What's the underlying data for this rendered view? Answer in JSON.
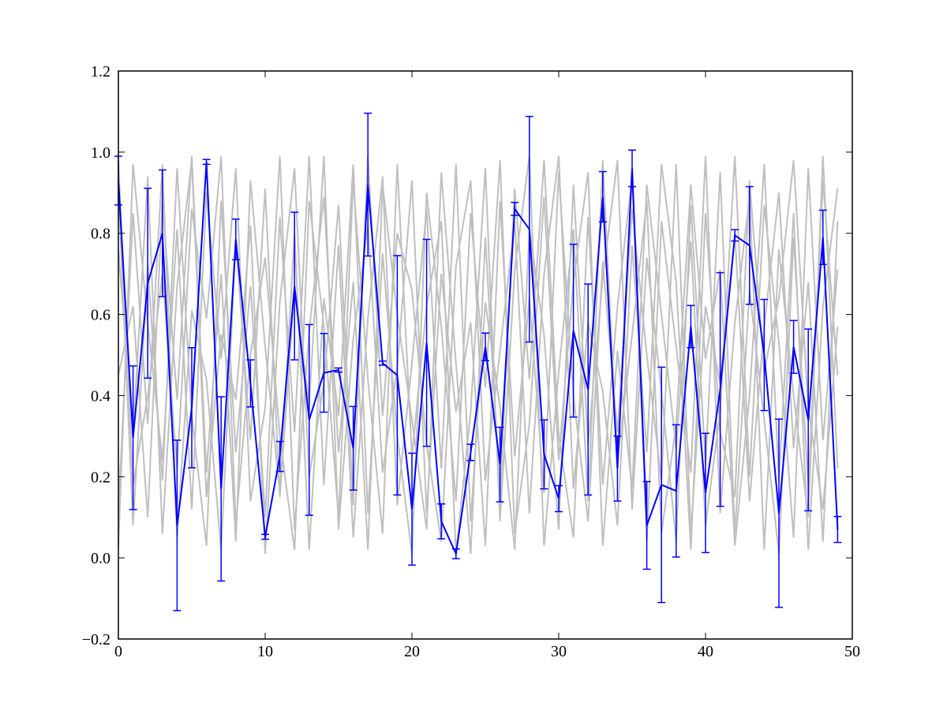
{
  "chart_data": {
    "type": "errorbar-line",
    "x": [
      0,
      1,
      2,
      3,
      4,
      5,
      6,
      7,
      8,
      9,
      10,
      11,
      12,
      13,
      14,
      15,
      16,
      17,
      18,
      19,
      20,
      21,
      22,
      23,
      24,
      25,
      26,
      27,
      28,
      29,
      30,
      31,
      32,
      33,
      34,
      35,
      36,
      37,
      38,
      39,
      40,
      41,
      42,
      43,
      44,
      45,
      46,
      47,
      48,
      49
    ],
    "xlim": [
      0,
      50
    ],
    "xticks": [
      0,
      10,
      20,
      30,
      40,
      50
    ],
    "ylim": [
      -0.2,
      1.2
    ],
    "yticks": [
      {
        "value": -0.2,
        "label": "−0.2"
      },
      {
        "value": 0,
        "label": "0.0"
      },
      0.2,
      0.4,
      0.6,
      0.8,
      {
        "value": 1,
        "label": "1.0"
      },
      1.2
    ],
    "grid": false,
    "background_series": [
      {
        "color": "#bfbfbf",
        "values": [
          0.12,
          0.85,
          0.33,
          0.97,
          0.05,
          0.61,
          0.44,
          0.02,
          0.78,
          0.29,
          0.91,
          0.15,
          0.66,
          0.38,
          0.99,
          0.07,
          0.54,
          0.82,
          0.21,
          0.47,
          0.93,
          0.11,
          0.7,
          0.36,
          0.58,
          0.03,
          0.88,
          0.25,
          0.64,
          0.16,
          0.95,
          0.4,
          0.09,
          0.73,
          0.31,
          0.86,
          0.5,
          0.19,
          0.97,
          0.06,
          0.62,
          0.43,
          0.8,
          0.14,
          0.57,
          0.9,
          0.27,
          0.68,
          0.04,
          0.83
        ]
      },
      {
        "color": "#bfbfbf",
        "values": [
          0.91,
          0.08,
          0.72,
          0.19,
          0.96,
          0.35,
          0.03,
          0.88,
          0.26,
          0.67,
          0.1,
          0.84,
          0.31,
          0.99,
          0.18,
          0.77,
          0.05,
          0.59,
          0.94,
          0.13,
          0.48,
          0.86,
          0.22,
          0.97,
          0.09,
          0.63,
          0.37,
          0.02,
          0.81,
          0.55,
          0.07,
          0.92,
          0.28,
          0.69,
          0.98,
          0.12,
          0.74,
          0.41,
          0.04,
          0.87,
          0.23,
          0.95,
          0.06,
          0.66,
          0.34,
          0.01,
          0.79,
          0.18,
          0.93,
          0.45
        ]
      },
      {
        "color": "#bfbfbf",
        "values": [
          0.45,
          0.62,
          0.1,
          0.88,
          0.39,
          0.99,
          0.21,
          0.7,
          0.04,
          0.93,
          0.52,
          0.16,
          0.8,
          0.02,
          0.64,
          0.35,
          0.97,
          0.11,
          0.75,
          0.3,
          0.01,
          0.9,
          0.57,
          0.14,
          0.85,
          0.42,
          0.98,
          0.06,
          0.33,
          0.89,
          0.24,
          0.68,
          0.95,
          0.03,
          0.51,
          0.17,
          0.92,
          0.6,
          0.27,
          0.78,
          0.08,
          0.36,
          0.99,
          0.2,
          0.87,
          0.53,
          0.05,
          0.96,
          0.29,
          0.71
        ]
      },
      {
        "color": "#bfbfbf",
        "values": [
          0.03,
          0.97,
          0.58,
          0.24,
          0.81,
          0.12,
          0.9,
          0.49,
          0.96,
          0.14,
          0.37,
          0.99,
          0.07,
          0.56,
          0.89,
          0.26,
          0.68,
          0.02,
          0.92,
          0.6,
          0.34,
          0.07,
          0.95,
          0.48,
          0.01,
          0.79,
          0.15,
          0.91,
          0.44,
          0.98,
          0.3,
          0.05,
          0.84,
          0.18,
          0.62,
          0.94,
          0.04,
          0.83,
          0.52,
          0.21,
          0.99,
          0.11,
          0.58,
          0.89,
          0.02,
          0.76,
          0.4,
          0.1,
          0.99,
          0.22
        ]
      },
      {
        "color": "#bfbfbf",
        "values": [
          0.76,
          0.3,
          0.94,
          0.06,
          0.67,
          0.98,
          0.15,
          0.55,
          0.39,
          0.82,
          0.01,
          0.63,
          0.96,
          0.2,
          0.43,
          0.87,
          0.13,
          0.99,
          0.35,
          0.8,
          0.66,
          0.28,
          0.04,
          0.72,
          0.93,
          0.19,
          0.51,
          0.83,
          0.11,
          0.7,
          0.99,
          0.17,
          0.58,
          0.41,
          0.08,
          0.77,
          0.26,
          0.97,
          0.68,
          0.02,
          0.85,
          0.31,
          0.15,
          0.93,
          0.46,
          0.64,
          0.98,
          0.37,
          0.12,
          0.57
        ]
      },
      {
        "color": "#bfbfbf",
        "values": [
          0.98,
          0.18,
          0.4,
          0.7,
          0.22,
          0.86,
          0.59,
          0.99,
          0.08,
          0.5,
          0.74,
          0.3,
          0.02,
          0.88,
          0.57,
          0.1,
          0.93,
          0.44,
          0.06,
          0.97,
          0.25,
          0.62,
          0.83,
          0.01,
          0.36,
          0.96,
          0.09,
          0.71,
          0.99,
          0.03,
          0.46,
          0.81,
          0.14,
          0.98,
          0.24,
          0.55,
          0.88,
          0.06,
          0.33,
          0.92,
          0.49,
          0.71,
          0.03,
          0.4,
          0.97,
          0.19,
          0.85,
          0.02,
          0.62,
          0.91
        ]
      }
    ],
    "series": [
      {
        "color": "#0000ff",
        "values": [
          0.93,
          0.296,
          0.677,
          0.8,
          0.08,
          0.37,
          0.976,
          0.17,
          0.785,
          0.43,
          0.052,
          0.25,
          0.67,
          0.34,
          0.456,
          0.463,
          0.27,
          0.92,
          0.48,
          0.45,
          0.12,
          0.53,
          0.09,
          0.01,
          0.26,
          0.52,
          0.23,
          0.86,
          0.81,
          0.255,
          0.146,
          0.56,
          0.415,
          0.89,
          0.22,
          0.96,
          0.08,
          0.18,
          0.165,
          0.57,
          0.16,
          0.415,
          0.795,
          0.77,
          0.5,
          0.11,
          0.52,
          0.34,
          0.79,
          0.07
        ],
        "errors": [
          0.06,
          0.177,
          0.234,
          0.156,
          0.21,
          0.148,
          0.006,
          0.227,
          0.05,
          0.058,
          0.006,
          0.037,
          0.182,
          0.235,
          0.097,
          0.005,
          0.103,
          0.176,
          0.005,
          0.295,
          0.138,
          0.255,
          0.043,
          0.012,
          0.02,
          0.034,
          0.092,
          0.016,
          0.278,
          0.085,
          0.032,
          0.213,
          0.26,
          0.062,
          0.08,
          0.045,
          0.108,
          0.29,
          0.163,
          0.052,
          0.147,
          0.288,
          0.014,
          0.145,
          0.137,
          0.232,
          0.065,
          0.224,
          0.067,
          0.032
        ]
      }
    ]
  }
}
